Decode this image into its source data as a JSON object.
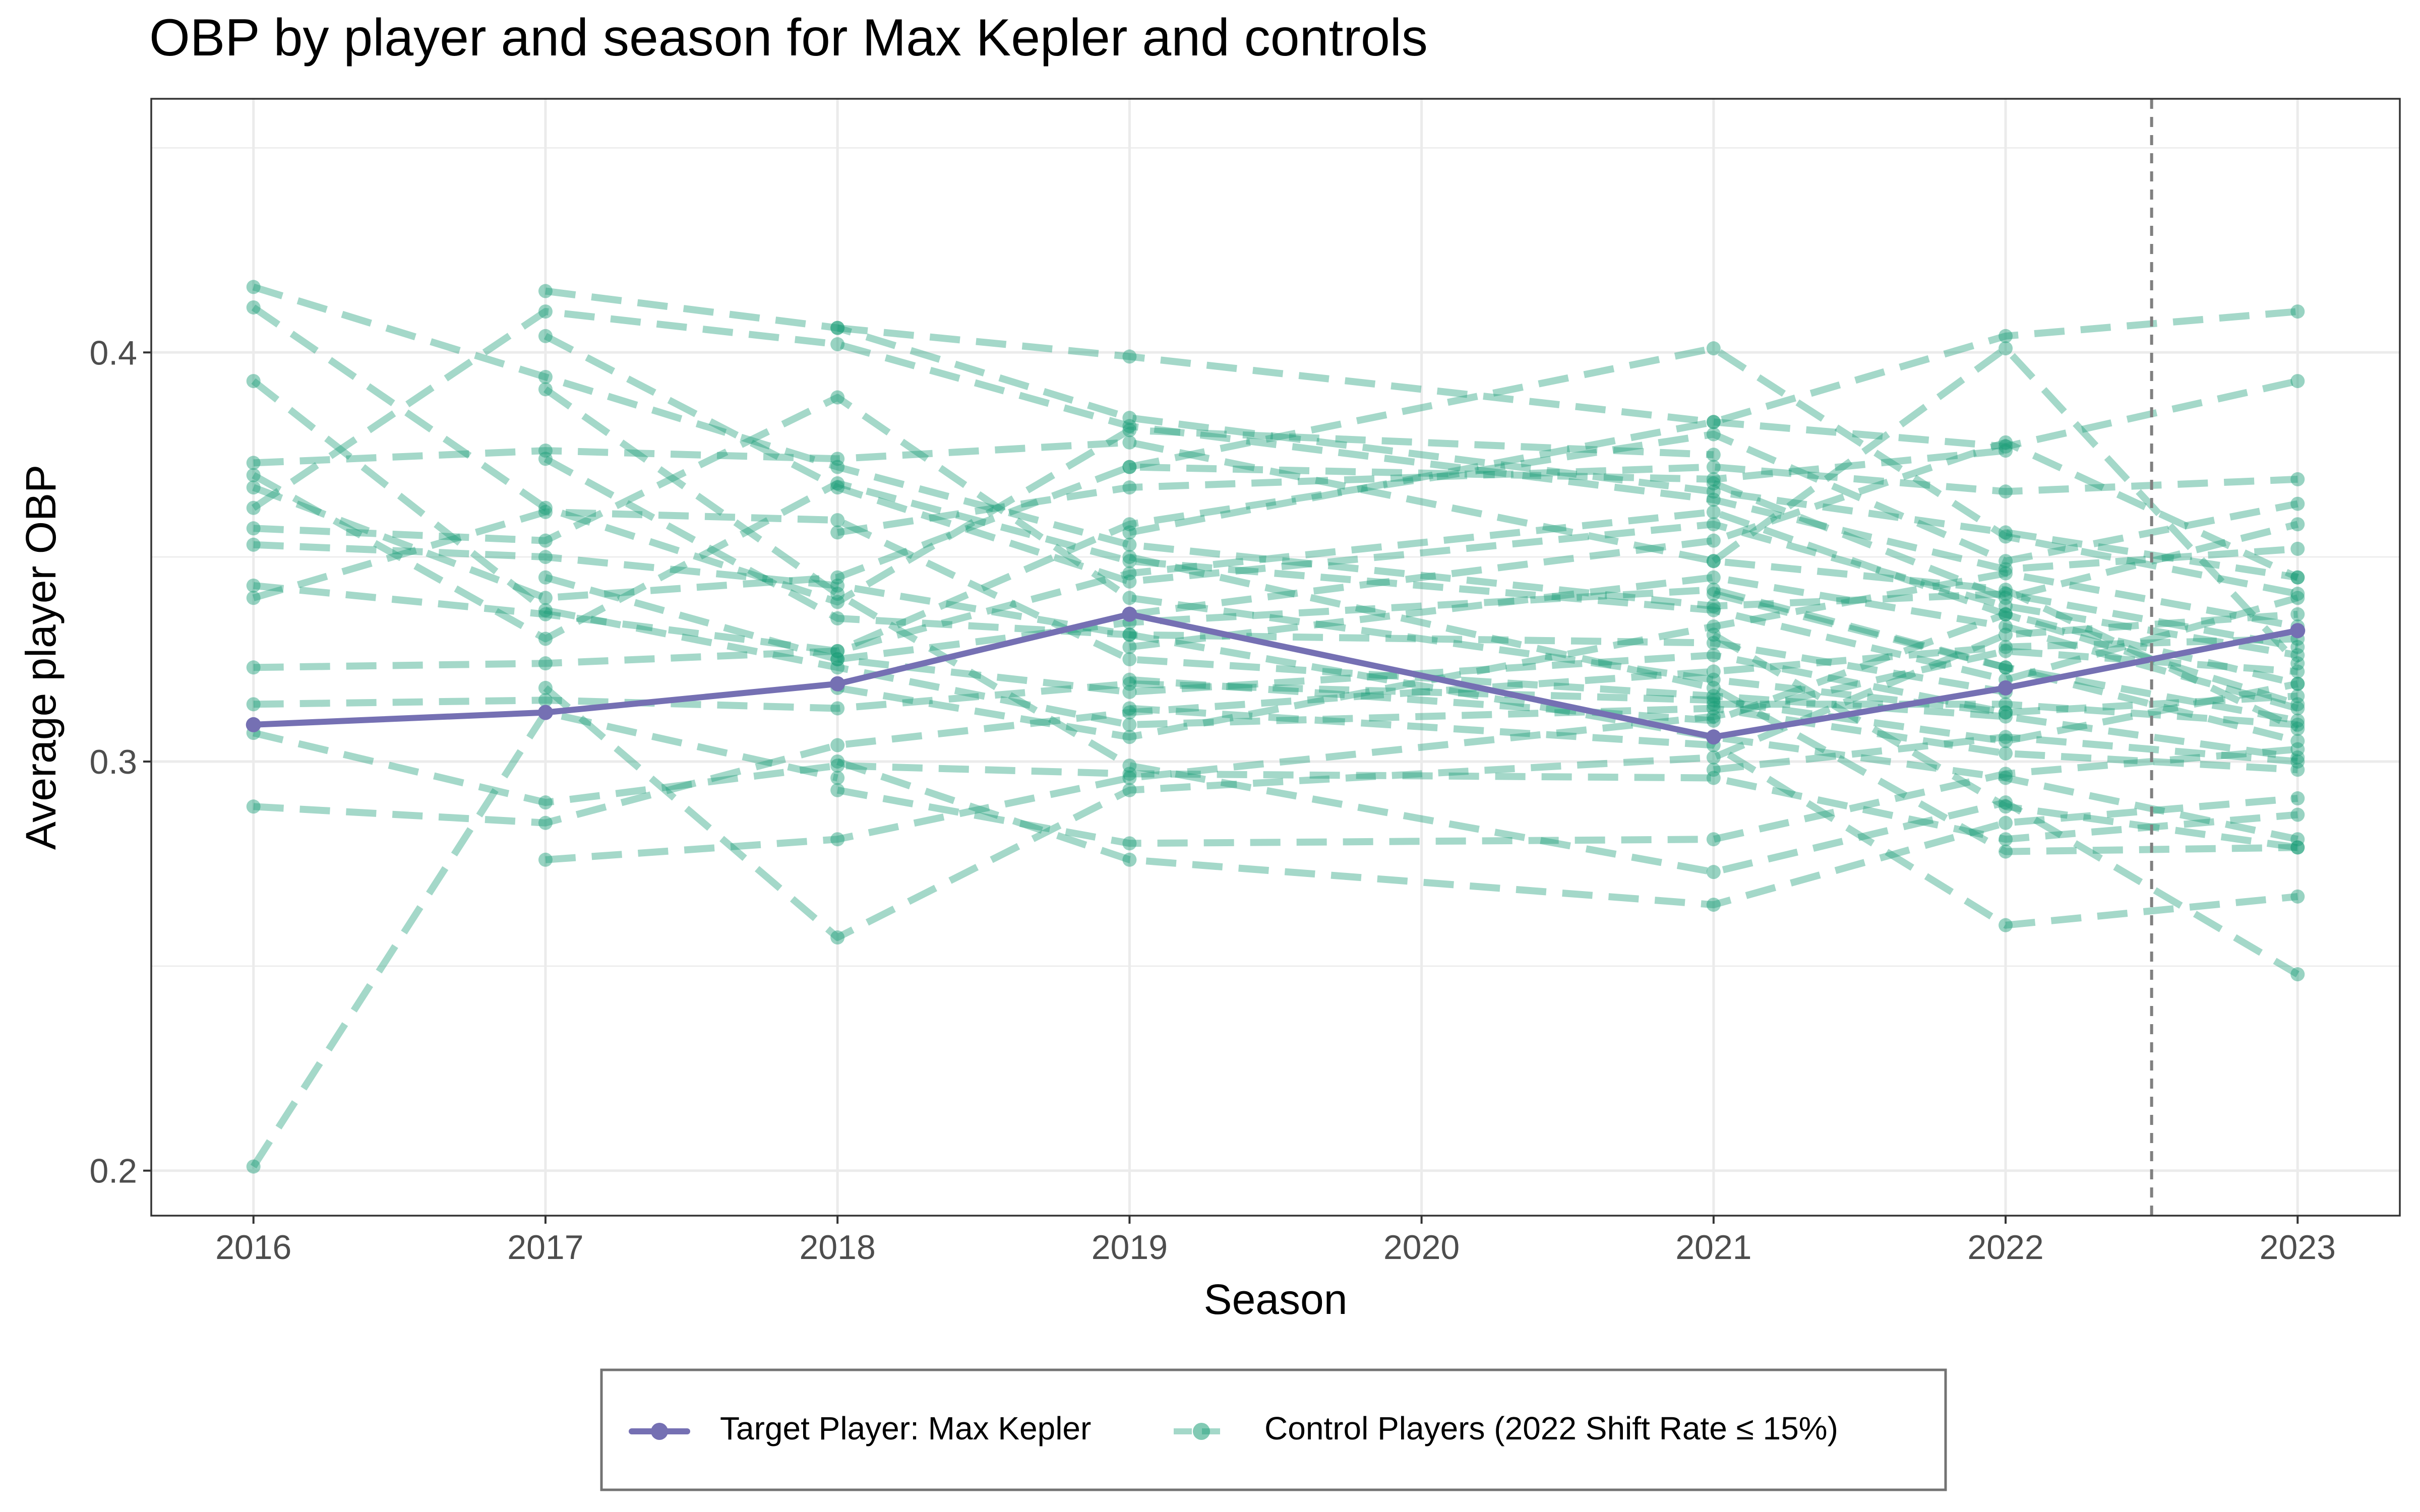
{
  "chart_data": {
    "type": "line",
    "title": "OBP by player and season for Max Kepler and controls",
    "xlabel": "Season",
    "ylabel": "Average player OBP",
    "x_ticks": [
      "2016",
      "2017",
      "2018",
      "2019",
      "2020",
      "2021",
      "2022",
      "2023"
    ],
    "y_ticks": [
      "0.2",
      "0.3",
      "0.4"
    ],
    "xlim": [
      2015.65,
      2023.35
    ],
    "ylim": [
      0.189,
      0.462
    ],
    "grid": true,
    "legend_position": "bottom",
    "reference_line": {
      "x": 2022.5,
      "style": "dashed"
    },
    "colors": {
      "target": "#7570b3",
      "control": "#1b9e77",
      "grid": "#ebebeb",
      "vline": "#808080"
    },
    "series": [
      {
        "name": "Target Player: Max Kepler",
        "kind": "target",
        "points": [
          [
            2016,
            0.309
          ],
          [
            2017,
            0.312
          ],
          [
            2018,
            0.319
          ],
          [
            2019,
            0.336
          ],
          [
            2021,
            0.306
          ],
          [
            2022,
            0.318
          ],
          [
            2023,
            0.332
          ]
        ]
      },
      {
        "name": "Control Players (2022 Shift Rate ≤ 15%)",
        "kind": "control",
        "players": [
          [
            [
              2016,
              0.201
            ],
            [
              2017,
              0.312
            ],
            [
              2018,
              0.296
            ]
          ],
          [
            [
              2016,
              0.416
            ],
            [
              2017,
              0.394
            ],
            [
              2018,
              0.372
            ],
            [
              2019,
              0.353
            ],
            [
              2021,
              0.338
            ],
            [
              2022,
              0.341
            ],
            [
              2023,
              0.328
            ]
          ],
          [
            [
              2016,
              0.411
            ],
            [
              2017,
              0.362
            ],
            [
              2018,
              0.339
            ],
            [
              2019,
              0.381
            ],
            [
              2021,
              0.375
            ]
          ],
          [
            [
              2016,
              0.393
            ],
            [
              2017,
              0.337
            ],
            [
              2018,
              0.323
            ],
            [
              2019,
              0.309
            ],
            [
              2021,
              0.313
            ],
            [
              2022,
              0.302
            ],
            [
              2023,
              0.298
            ]
          ],
          [
            [
              2016,
              0.373
            ],
            [
              2017,
              0.376
            ],
            [
              2018,
              0.374
            ],
            [
              2019,
              0.378
            ],
            [
              2021,
              0.349
            ],
            [
              2022,
              0.342
            ],
            [
              2023,
              0.308
            ]
          ],
          [
            [
              2016,
              0.37
            ],
            [
              2017,
              0.33
            ],
            [
              2018,
              0.368
            ],
            [
              2019,
              0.349
            ],
            [
              2021,
              0.337
            ],
            [
              2022,
              0.32
            ],
            [
              2023,
              0.34
            ]
          ],
          [
            [
              2016,
              0.367
            ],
            [
              2017,
              0.34
            ],
            [
              2018,
              0.345
            ],
            [
              2019,
              0.372
            ],
            [
              2021,
              0.369
            ],
            [
              2022,
              0.376
            ]
          ],
          [
            [
              2016,
              0.362
            ],
            [
              2017,
              0.41
            ],
            [
              2018,
              0.402
            ],
            [
              2019,
              0.382
            ],
            [
              2021,
              0.364
            ],
            [
              2022,
              0.347
            ],
            [
              2023,
              0.352
            ]
          ],
          [
            [
              2016,
              0.357
            ],
            [
              2017,
              0.354
            ],
            [
              2018,
              0.389
            ],
            [
              2019,
              0.34
            ],
            [
              2021,
              0.32
            ],
            [
              2022,
              0.312
            ]
          ],
          [
            [
              2016,
              0.353
            ],
            [
              2017,
              0.35
            ],
            [
              2018,
              0.343
            ],
            [
              2019,
              0.331
            ],
            [
              2021,
              0.306
            ],
            [
              2022,
              0.296
            ],
            [
              2023,
              0.281
            ]
          ],
          [
            [
              2016,
              0.343
            ],
            [
              2017,
              0.336
            ],
            [
              2018,
              0.327
            ],
            [
              2019,
              0.346
            ],
            [
              2021,
              0.361
            ],
            [
              2022,
              0.336
            ],
            [
              2023,
              0.319
            ]
          ],
          [
            [
              2016,
              0.34
            ],
            [
              2017,
              0.361
            ],
            [
              2018,
              0.359
            ],
            [
              2019,
              0.325
            ],
            [
              2021,
              0.316
            ],
            [
              2022,
              0.311
            ],
            [
              2023,
              0.301
            ]
          ],
          [
            [
              2016,
              0.323
            ],
            [
              2017,
              0.324
            ],
            [
              2018,
              0.327
            ],
            [
              2019,
              0.358
            ],
            [
              2021,
              0.38
            ],
            [
              2022,
              0.349
            ],
            [
              2023,
              0.363
            ]
          ],
          [
            [
              2016,
              0.314
            ],
            [
              2017,
              0.315
            ],
            [
              2018,
              0.313
            ],
            [
              2019,
              0.319
            ],
            [
              2021,
              0.315
            ],
            [
              2022,
              0.305
            ],
            [
              2023,
              0.319
            ]
          ],
          [
            [
              2016,
              0.307
            ],
            [
              2017,
              0.29
            ],
            [
              2018,
              0.299
            ],
            [
              2019,
              0.297
            ],
            [
              2021,
              0.296
            ],
            [
              2022,
              0.281
            ],
            [
              2023,
              0.287
            ]
          ],
          [
            [
              2016,
              0.289
            ],
            [
              2017,
              0.285
            ],
            [
              2018,
              0.304
            ],
            [
              2019,
              0.312
            ],
            [
              2021,
              0.322
            ],
            [
              2022,
              0.328
            ],
            [
              2023,
              0.33
            ]
          ],
          [
            [
              2017,
              0.415
            ],
            [
              2018,
              0.406
            ],
            [
              2019,
              0.384
            ],
            [
              2021,
              0.366
            ],
            [
              2022,
              0.356
            ],
            [
              2023,
              0.345
            ]
          ],
          [
            [
              2017,
              0.404
            ],
            [
              2018,
              0.367
            ],
            [
              2019,
              0.344
            ],
            [
              2021,
              0.358
            ],
            [
              2022,
              0.338
            ],
            [
              2023,
              0.326
            ]
          ],
          [
            [
              2017,
              0.391
            ],
            [
              2018,
              0.341
            ],
            [
              2019,
              0.299
            ],
            [
              2021,
              0.273
            ],
            [
              2022,
              0.29
            ],
            [
              2023,
              0.248
            ]
          ],
          [
            [
              2017,
              0.374
            ],
            [
              2018,
              0.335
            ],
            [
              2019,
              0.331
            ],
            [
              2021,
              0.329
            ],
            [
              2022,
              0.317
            ]
          ],
          [
            [
              2017,
              0.345
            ],
            [
              2018,
              0.325
            ],
            [
              2019,
              0.317
            ],
            [
              2021,
              0.326
            ],
            [
              2022,
              0.312
            ],
            [
              2023,
              0.316
            ]
          ],
          [
            [
              2017,
              0.276
            ],
            [
              2018,
              0.281
            ],
            [
              2019,
              0.296
            ],
            [
              2021,
              0.311
            ],
            [
              2022,
              0.327
            ],
            [
              2023,
              0.322
            ]
          ],
          [
            [
              2017,
              0.318
            ],
            [
              2018,
              0.257
            ],
            [
              2019,
              0.293
            ],
            [
              2021,
              0.301
            ],
            [
              2022,
              0.331
            ],
            [
              2023,
              0.336
            ]
          ],
          [
            [
              2018,
              0.406
            ],
            [
              2019,
              0.399
            ],
            [
              2021,
              0.383
            ],
            [
              2022,
              0.377
            ],
            [
              2023,
              0.393
            ]
          ],
          [
            [
              2018,
              0.356
            ],
            [
              2019,
              0.367
            ],
            [
              2021,
              0.372
            ],
            [
              2022,
              0.366
            ],
            [
              2023,
              0.369
            ]
          ],
          [
            [
              2018,
              0.325
            ],
            [
              2019,
              0.334
            ],
            [
              2021,
              0.342
            ],
            [
              2022,
              0.323
            ],
            [
              2023,
              0.31
            ]
          ],
          [
            [
              2018,
              0.318
            ],
            [
              2019,
              0.306
            ],
            [
              2021,
              0.333
            ],
            [
              2022,
              0.346
            ],
            [
              2023,
              0.333
            ]
          ],
          [
            [
              2018,
              0.293
            ],
            [
              2019,
              0.28
            ],
            [
              2021,
              0.281
            ],
            [
              2022,
              0.297
            ],
            [
              2023,
              0.303
            ]
          ],
          [
            [
              2018,
              0.3
            ],
            [
              2019,
              0.276
            ],
            [
              2021,
              0.265
            ],
            [
              2022,
              0.285
            ],
            [
              2023,
              0.291
            ]
          ],
          [
            [
              2019,
              0.372
            ],
            [
              2021,
              0.401
            ],
            [
              2022,
              0.355
            ],
            [
              2023,
              0.341
            ]
          ],
          [
            [
              2019,
              0.356
            ],
            [
              2021,
              0.383
            ],
            [
              2022,
              0.404
            ],
            [
              2023,
              0.41
            ]
          ],
          [
            [
              2019,
              0.35
            ],
            [
              2021,
              0.318
            ],
            [
              2022,
              0.278
            ],
            [
              2023,
              0.279
            ]
          ],
          [
            [
              2019,
              0.336
            ],
            [
              2021,
              0.354
            ],
            [
              2022,
              0.378
            ],
            [
              2023,
              0.345
            ]
          ],
          [
            [
              2019,
              0.328
            ],
            [
              2021,
              0.345
            ],
            [
              2022,
              0.333
            ],
            [
              2023,
              0.313
            ]
          ],
          [
            [
              2019,
              0.32
            ],
            [
              2021,
              0.31
            ],
            [
              2022,
              0.336
            ],
            [
              2023,
              0.314
            ]
          ],
          [
            [
              2019,
              0.313
            ],
            [
              2021,
              0.304
            ],
            [
              2022,
              0.26
            ],
            [
              2023,
              0.267
            ]
          ],
          [
            [
              2021,
              0.368
            ],
            [
              2022,
              0.34
            ],
            [
              2023,
              0.358
            ]
          ],
          [
            [
              2021,
              0.349
            ],
            [
              2022,
              0.401
            ],
            [
              2023,
              0.324
            ]
          ],
          [
            [
              2021,
              0.341
            ],
            [
              2022,
              0.323
            ],
            [
              2023,
              0.305
            ]
          ],
          [
            [
              2021,
              0.314
            ],
            [
              2022,
              0.314
            ],
            [
              2023,
              0.309
            ]
          ],
          [
            [
              2021,
              0.298
            ],
            [
              2022,
              0.306
            ],
            [
              2023,
              0.3
            ]
          ],
          [
            [
              2021,
              0.331
            ],
            [
              2022,
              0.289
            ],
            [
              2023,
              0.279
            ]
          ]
        ]
      }
    ]
  }
}
